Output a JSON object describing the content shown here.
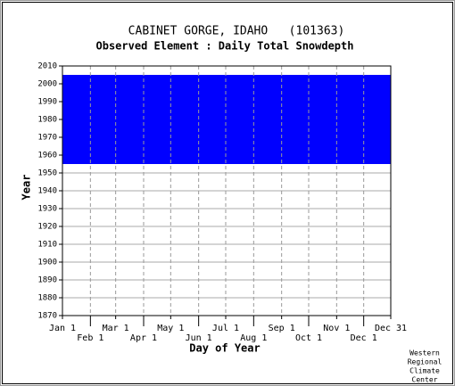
{
  "chart_data": {
    "type": "coverage",
    "title": "CABINET GORGE, IDAHO   (101363)",
    "subtitle": "Observed Element : Daily Total Snowdepth",
    "x_label": "Day of Year",
    "y_label": "Year",
    "source": [
      "Western",
      "Regional",
      "Climate",
      "Center"
    ],
    "coverage": {
      "start_year": 1955,
      "end_year": 2005
    },
    "color": "#0000ff",
    "xlim": [
      1,
      365
    ],
    "xticks": [
      {
        "value": 1,
        "label": "Jan 1"
      },
      {
        "value": 32,
        "label": "Feb 1"
      },
      {
        "value": 60,
        "label": "Mar 1"
      },
      {
        "value": 91,
        "label": "Apr 1"
      },
      {
        "value": 121,
        "label": "May 1"
      },
      {
        "value": 152,
        "label": "Jun 1"
      },
      {
        "value": 182,
        "label": "Jul 1"
      },
      {
        "value": 213,
        "label": "Aug 1"
      },
      {
        "value": 244,
        "label": "Sep 1"
      },
      {
        "value": 274,
        "label": "Oct 1"
      },
      {
        "value": 305,
        "label": "Nov 1"
      },
      {
        "value": 335,
        "label": "Dec 1"
      },
      {
        "value": 365,
        "label": "Dec 31"
      }
    ],
    "ylim": [
      1870,
      2010
    ],
    "yticks": [
      1870,
      1880,
      1890,
      1900,
      1910,
      1920,
      1930,
      1940,
      1950,
      1960,
      1970,
      1980,
      1990,
      2000,
      2010
    ],
    "grid": true
  }
}
